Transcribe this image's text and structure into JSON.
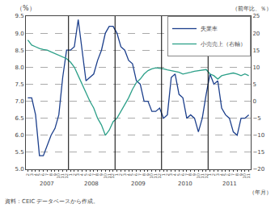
{
  "chart_data": {
    "type": "line",
    "ylabel": "（%）",
    "y2label": "（前年比、％）",
    "xlabel": "（年月）",
    "source": "資料：CEIC データベースから作成。",
    "categories": [
      "2",
      "3",
      "4",
      "5",
      "6",
      "7",
      "8",
      "9",
      "10",
      "11",
      "12",
      "1",
      "2",
      "3",
      "4",
      "5",
      "6",
      "7",
      "8",
      "9",
      "10",
      "11",
      "12",
      "1",
      "2",
      "3",
      "4",
      "5",
      "6",
      "7",
      "8",
      "9",
      "10",
      "11",
      "12",
      "1",
      "2",
      "3",
      "4",
      "5",
      "6",
      "7",
      "8",
      "9",
      "10",
      "11",
      "12",
      "1",
      "2",
      "3",
      "4",
      "5",
      "6",
      "7",
      "8",
      "9",
      "10",
      "11"
    ],
    "annotations": [
      "2007",
      "2008",
      "2009",
      "2010",
      "2011"
    ],
    "ylim": [
      5.0,
      9.5
    ],
    "yticks": [
      {
        "value": 5.0,
        "label": "5.0"
      },
      {
        "value": 5.5,
        "label": "5.5"
      },
      {
        "value": 6.0,
        "label": "6.0"
      },
      {
        "value": 6.5,
        "label": "6.5"
      },
      {
        "value": 7.0,
        "label": "7.0"
      },
      {
        "value": 7.5,
        "label": "7.5"
      },
      {
        "value": 8.0,
        "label": "8.0"
      },
      {
        "value": 8.5,
        "label": "8.5"
      },
      {
        "value": 9.0,
        "label": "9.0"
      },
      {
        "value": 9.5,
        "label": "9.5"
      }
    ],
    "y2lim": [
      -20,
      25
    ],
    "y2ticks": [
      -20,
      -15,
      -10,
      -5,
      0,
      5,
      10,
      15,
      20,
      25
    ],
    "series": [
      {
        "name": "失業率",
        "color": "#1c3f8c",
        "values": [
          7.1,
          7.1,
          6.6,
          5.4,
          5.4,
          5.7,
          6.0,
          6.2,
          6.6,
          7.7,
          8.5,
          8.5,
          8.6,
          9.4,
          8.5,
          7.6,
          7.7,
          7.8,
          8.2,
          8.5,
          9.0,
          9.2,
          9.2,
          9.0,
          8.6,
          8.5,
          8.2,
          8.1,
          7.6,
          7.5,
          7.0,
          7.0,
          6.7,
          6.7,
          6.8,
          6.5,
          6.6,
          7.7,
          7.8,
          7.2,
          7.1,
          6.5,
          6.6,
          6.5,
          6.1,
          6.5,
          7.2,
          7.8,
          7.5,
          7.6,
          6.8,
          6.6,
          6.5,
          6.1,
          6.0,
          6.5,
          6.5,
          6.6
        ]
      },
      {
        "name": "小売売上（右軸）",
        "color": "#2da089",
        "axis": "y2",
        "values": [
          18.0,
          16.5,
          16.0,
          15.5,
          15.2,
          15.0,
          14.5,
          14.0,
          13.5,
          13.0,
          12.5,
          11.5,
          10.0,
          7.5,
          5.0,
          2.5,
          0.0,
          -2.0,
          -5.0,
          -7.0,
          -10.0,
          -8.5,
          -6.0,
          -5.0,
          -3.0,
          -1.0,
          1.0,
          3.5,
          5.5,
          6.5,
          8.0,
          9.0,
          9.5,
          9.8,
          9.7,
          9.5,
          9.2,
          9.0,
          8.7,
          8.5,
          8.0,
          8.2,
          8.5,
          8.8,
          9.0,
          9.2,
          9.3,
          8.0,
          7.5,
          6.5,
          7.5,
          7.8,
          8.0,
          8.3,
          8.0,
          7.5,
          8.0,
          7.5
        ]
      }
    ],
    "grid": true,
    "legend": "upper right"
  }
}
